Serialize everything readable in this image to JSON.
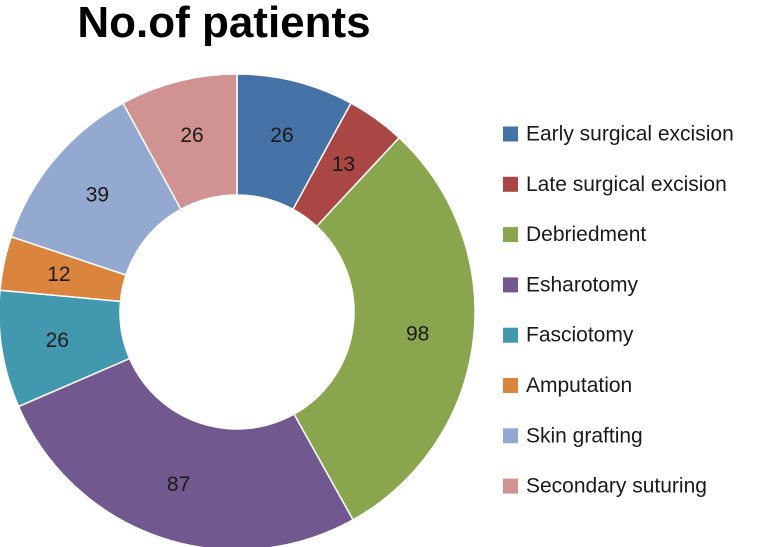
{
  "chart_data": {
    "type": "pie",
    "variant": "donut",
    "title": "No.of patients",
    "categories": [
      "Early surgical excision",
      "Late surgical excision",
      "Debriedment",
      "Esharotomy",
      "Fasciotomy",
      "Amputation",
      "Skin grafting",
      "Secondary suturing"
    ],
    "values": [
      26,
      13,
      98,
      87,
      26,
      12,
      39,
      26
    ],
    "colors": [
      "#4572A7",
      "#AA4643",
      "#89A54E",
      "#71588F",
      "#4198AF",
      "#DB843D",
      "#93A9CF",
      "#D19392"
    ],
    "legend_position": "right",
    "start_angle_deg": 0,
    "direction": "clockwise"
  }
}
